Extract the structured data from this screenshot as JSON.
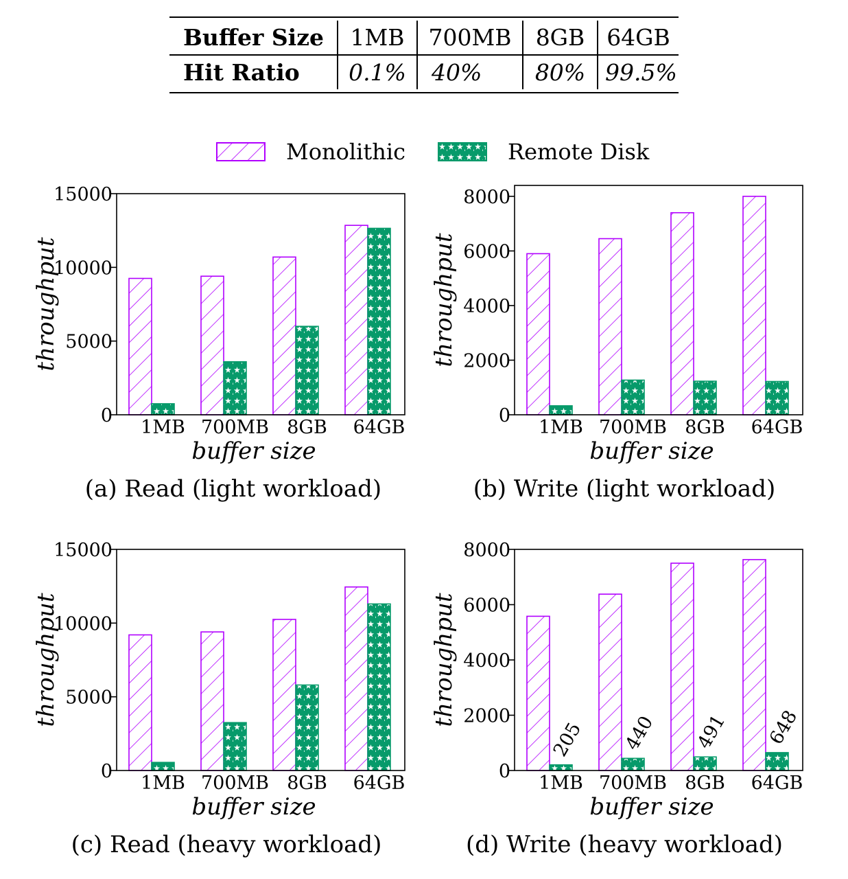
{
  "table": {
    "rows": [
      {
        "header": "Buffer Size",
        "cells": [
          "1MB",
          "700MB",
          "8GB",
          "64GB"
        ]
      },
      {
        "header": "Hit Ratio",
        "cells": [
          "0.1%",
          "40%",
          "80%",
          "99.5%"
        ]
      }
    ]
  },
  "legend": {
    "items": [
      {
        "label": "Monolithic",
        "color": "#b100ff",
        "pattern": "hatch"
      },
      {
        "label": "Remote Disk",
        "color": "#079a6a",
        "pattern": "stars"
      }
    ]
  },
  "chart_data": [
    {
      "type": "bar",
      "caption": "(a) Read (light workload)",
      "xlabel": "buffer size",
      "ylabel": "throughput",
      "categories": [
        "1MB",
        "700MB",
        "8GB",
        "64GB"
      ],
      "ylim": [
        0,
        15000
      ],
      "yticks": [
        0,
        5000,
        10000,
        15000
      ],
      "series": [
        {
          "name": "Monolithic",
          "values": [
            9250,
            9400,
            10700,
            12850
          ]
        },
        {
          "name": "Remote Disk",
          "values": [
            750,
            3600,
            6000,
            12650
          ]
        }
      ],
      "bar_labels": []
    },
    {
      "type": "bar",
      "caption": "(b) Write (light workload)",
      "xlabel": "buffer size",
      "ylabel": "throughput",
      "categories": [
        "1MB",
        "700MB",
        "8GB",
        "64GB"
      ],
      "ylim": [
        0,
        8400
      ],
      "yticks": [
        0,
        2000,
        4000,
        6000,
        8000
      ],
      "series": [
        {
          "name": "Monolithic",
          "values": [
            5900,
            6450,
            7400,
            8000
          ]
        },
        {
          "name": "Remote Disk",
          "values": [
            330,
            1270,
            1230,
            1220
          ]
        }
      ],
      "bar_labels": []
    },
    {
      "type": "bar",
      "caption": "(c) Read (heavy workload)",
      "xlabel": "buffer size",
      "ylabel": "throughput",
      "categories": [
        "1MB",
        "700MB",
        "8GB",
        "64GB"
      ],
      "ylim": [
        0,
        15000
      ],
      "yticks": [
        0,
        5000,
        10000,
        15000
      ],
      "series": [
        {
          "name": "Monolithic",
          "values": [
            9200,
            9400,
            10250,
            12450
          ]
        },
        {
          "name": "Remote Disk",
          "values": [
            550,
            3250,
            5800,
            11300
          ]
        }
      ],
      "bar_labels": []
    },
    {
      "type": "bar",
      "caption": "(d) Write (heavy workload)",
      "xlabel": "buffer size",
      "ylabel": "throughput",
      "categories": [
        "1MB",
        "700MB",
        "8GB",
        "64GB"
      ],
      "ylim": [
        0,
        8000
      ],
      "yticks": [
        0,
        2000,
        4000,
        6000,
        8000
      ],
      "series": [
        {
          "name": "Monolithic",
          "values": [
            5580,
            6380,
            7500,
            7630
          ]
        },
        {
          "name": "Remote Disk",
          "values": [
            205,
            440,
            491,
            648
          ]
        }
      ],
      "bar_labels": [
        "205",
        "440",
        "491",
        "648"
      ]
    }
  ]
}
